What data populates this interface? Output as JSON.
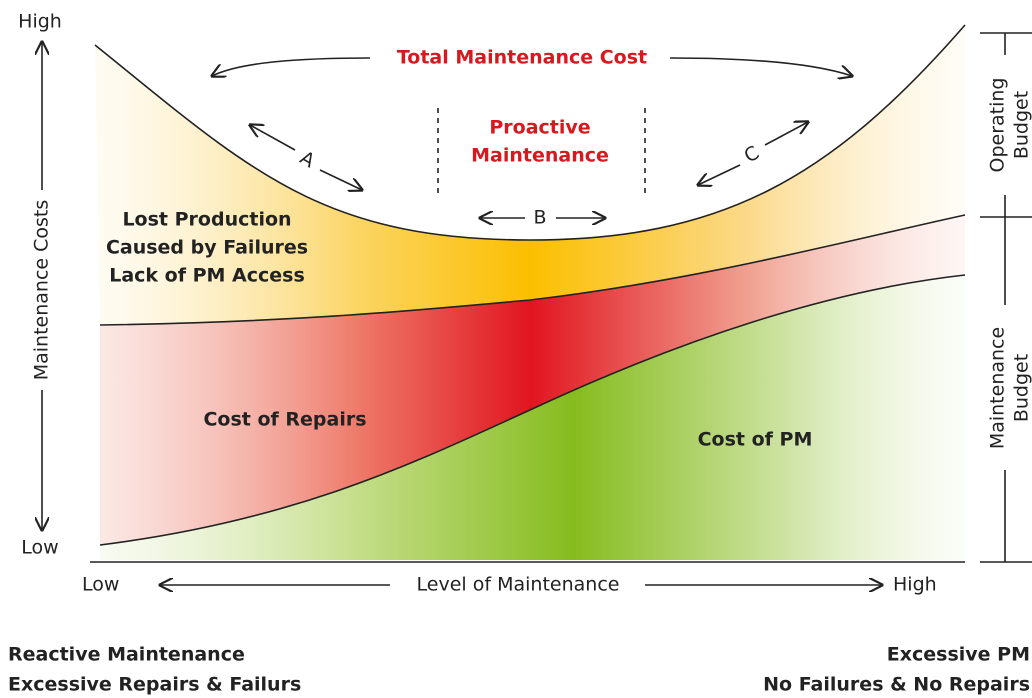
{
  "y_axis": {
    "high": "High",
    "low": "Low",
    "label": "Maintenance Costs"
  },
  "x_axis": {
    "low": "Low",
    "label": "Level of Maintenance",
    "high": "High"
  },
  "total_cost": "Total Maintenance Cost",
  "proactive": [
    "Proactive",
    "Maintenance"
  ],
  "zones": [
    "A",
    "B",
    "C"
  ],
  "lost_production": [
    "Lost Production",
    "Caused by Failures",
    "Lack of PM Access"
  ],
  "cost_of_repairs": "Cost of Repairs",
  "cost_of_pm": "Cost of PM",
  "budget": {
    "operating": [
      "Operating",
      "Budget"
    ],
    "maintenance": [
      "Maintenance",
      "Budget"
    ]
  },
  "left_note": [
    "Reactive Maintenance",
    "Excessive Repairs & Failurs"
  ],
  "right_note": [
    "Excessive PM",
    "No Failures & No Repairs"
  ]
}
